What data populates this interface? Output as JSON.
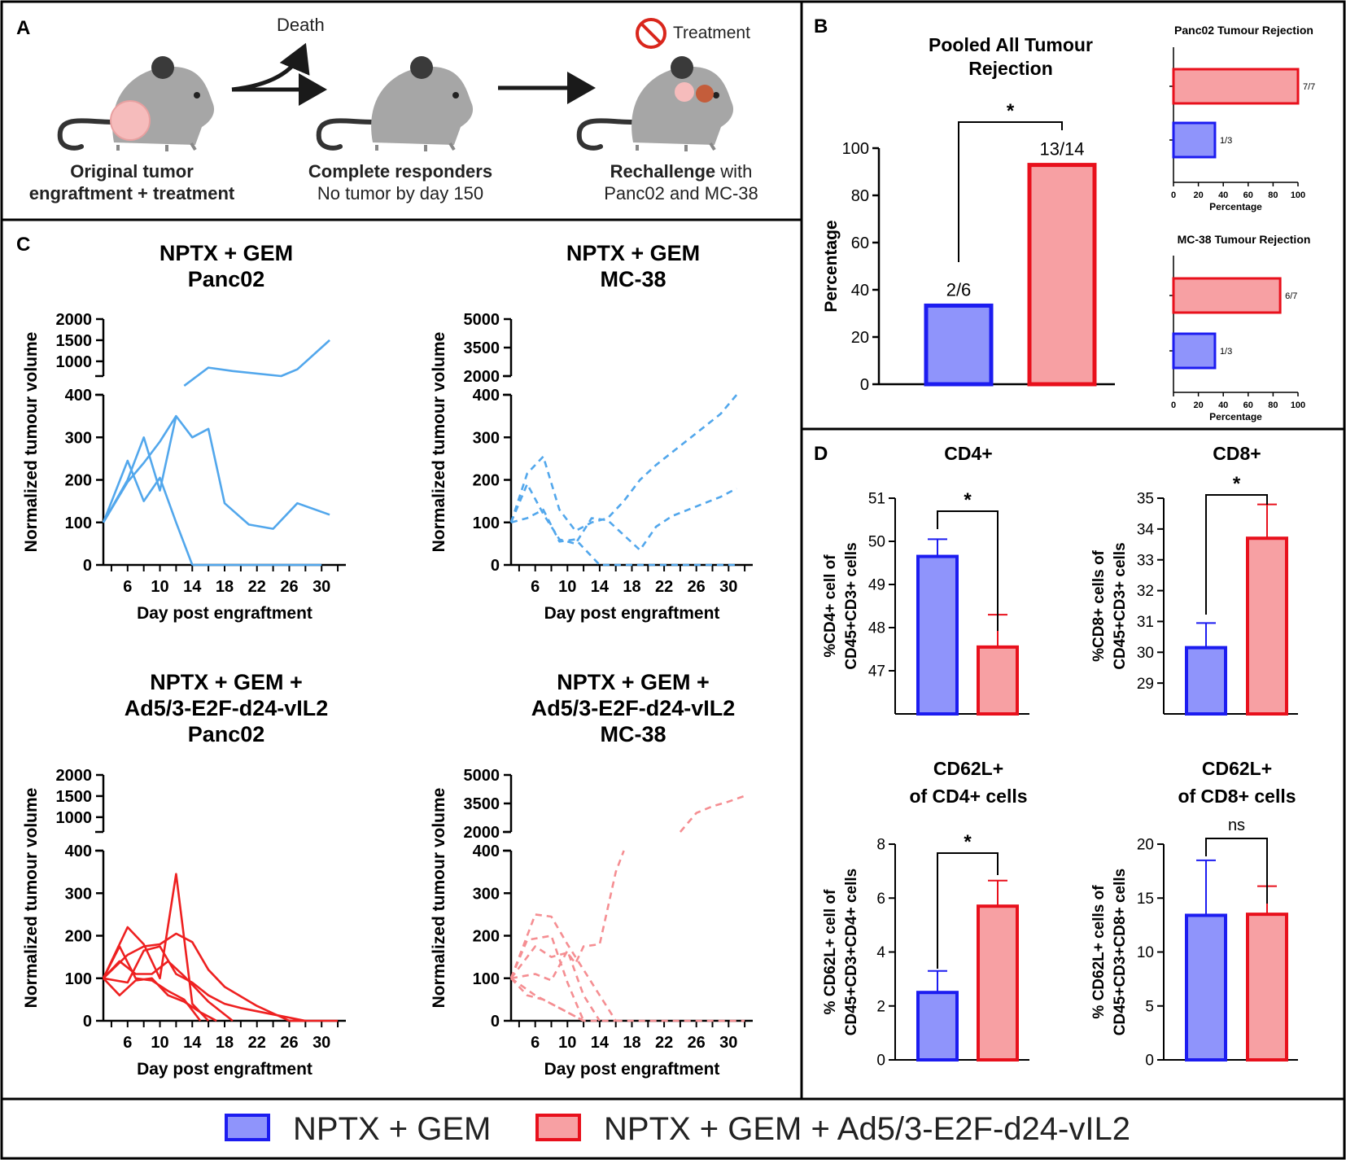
{
  "colors": {
    "blue_fill": "#8f94fb",
    "blue_edge": "#1c1cf0",
    "red_fill": "#f7a0a3",
    "red_edge": "#e8101c",
    "line_blue": "#52a7ec",
    "line_red": "#ee2020",
    "line_pink": "#f58e92",
    "mouse": "#a6a6a6",
    "mouse_dark": "#3c3c3c",
    "tumor_light": "#f6bcbc",
    "tumor_dark": "#c45d3b",
    "forbid": "#d9261c"
  },
  "panel_a": {
    "label": "A",
    "death": "Death",
    "treatment": "Treatment",
    "step1_line1": "Original tumor",
    "step1_line2": "engraftment + treatment",
    "step2_line1": "Complete responders",
    "step2_line2": "No tumor by day 150",
    "step3_bold": "Rechallenge",
    "step3_rest": " with",
    "step3_line2": "Panc02 and MC-38"
  },
  "panel_b_label": "B",
  "panel_c_label": "C",
  "panel_d_label": "D",
  "legend": {
    "items": [
      {
        "label": "NPTX + GEM",
        "group": "blue"
      },
      {
        "label": "NPTX + GEM + Ad5/3-E2F-d24-vIL2",
        "group": "red"
      }
    ]
  },
  "chart_data": [
    {
      "id": "pooled",
      "type": "bar",
      "title": "Pooled All Tumour Rejection",
      "title_lines": [
        "Pooled All Tumour",
        "Rejection"
      ],
      "ylabel": "Percentage",
      "ylim": [
        0,
        100
      ],
      "yticks": [
        0,
        20,
        40,
        60,
        80,
        100
      ],
      "categories": [
        "NPTX + GEM",
        "NPTX + GEM + Ad5/3-E2F-d24-vIL2"
      ],
      "values": [
        33.3,
        92.9
      ],
      "data_labels": [
        "2/6",
        "13/14"
      ],
      "significance": "*"
    },
    {
      "id": "panc02_rej",
      "type": "bar",
      "orientation": "horizontal",
      "title": "Panc02 Tumour Rejection",
      "xlabel": "Percentage",
      "xlim": [
        0,
        100
      ],
      "xticks": [
        0,
        20,
        40,
        60,
        80,
        100
      ],
      "categories": [
        "NPTX + GEM + Ad5/3-E2F-d24-vIL2",
        "NPTX + GEM"
      ],
      "values": [
        100,
        33.3
      ],
      "data_labels": [
        "7/7",
        "1/3"
      ]
    },
    {
      "id": "mc38_rej",
      "type": "bar",
      "orientation": "horizontal",
      "title": "MC-38 Tumour Rejection",
      "xlabel": "Percentage",
      "xlim": [
        0,
        100
      ],
      "xticks": [
        0,
        20,
        40,
        60,
        80,
        100
      ],
      "categories": [
        "NPTX + GEM + Ad5/3-E2F-d24-vIL2",
        "NPTX + GEM"
      ],
      "values": [
        85.7,
        33.3
      ],
      "data_labels": [
        "6/7",
        "1/3"
      ]
    },
    {
      "id": "c1",
      "type": "line",
      "title_lines": [
        "NPTX + GEM",
        "Panc02"
      ],
      "xlabel": "Day post engraftment",
      "ylabel": "Normalized tumour volume",
      "xlim": [
        3,
        33
      ],
      "xticks": [
        6,
        10,
        14,
        18,
        22,
        26,
        30
      ],
      "ylim_lower": [
        0,
        400
      ],
      "yticks_lower": [
        0,
        100,
        200,
        300,
        400
      ],
      "ylim_upper": [
        650,
        2000
      ],
      "yticks_upper": [
        1000,
        1500,
        2000
      ],
      "style": "solid",
      "color": "line_blue",
      "series": [
        {
          "x": [
            3,
            6,
            8,
            10,
            12,
            14
          ],
          "y": [
            100,
            245,
            150,
            205,
            100,
            0
          ]
        },
        {
          "x": [
            3,
            6,
            8,
            10,
            12,
            14,
            16,
            18,
            21,
            24,
            27,
            31
          ],
          "y": [
            100,
            200,
            300,
            175,
            350,
            300,
            320,
            145,
            95,
            85,
            145,
            118
          ]
        },
        {
          "x": [
            3,
            6,
            8,
            10,
            12,
            13,
            16,
            19,
            25,
            27,
            31
          ],
          "y": [
            100,
            195,
            240,
            290,
            350,
            420,
            850,
            770,
            650,
            810,
            1500
          ]
        },
        {
          "x": [
            14,
            16,
            18,
            20,
            22,
            24,
            26,
            28,
            30
          ],
          "y": [
            0,
            0,
            0,
            0,
            0,
            0,
            0,
            0,
            0
          ]
        }
      ]
    },
    {
      "id": "c2",
      "type": "line",
      "title_lines": [
        "NPTX + GEM",
        "MC-38"
      ],
      "xlabel": "Day post engraftment",
      "ylabel": "Normalized tumour volume",
      "xlim": [
        3,
        33
      ],
      "xticks": [
        6,
        10,
        14,
        18,
        22,
        26,
        30
      ],
      "ylim_lower": [
        0,
        400
      ],
      "yticks_lower": [
        0,
        100,
        200,
        300,
        400
      ],
      "ylim_upper": [
        2000,
        5000
      ],
      "yticks_upper": [
        2000,
        3500,
        5000
      ],
      "style": "dashed",
      "color": "line_blue",
      "series": [
        {
          "x": [
            3,
            5,
            7,
            9,
            11,
            13,
            15,
            17,
            19,
            21,
            23,
            25,
            27,
            29,
            31
          ],
          "y": [
            100,
            215,
            255,
            130,
            80,
            100,
            110,
            150,
            200,
            235,
            265,
            295,
            325,
            355,
            400
          ]
        },
        {
          "x": [
            3,
            5,
            7,
            9,
            11,
            13,
            15,
            17,
            19,
            21,
            23,
            25,
            27,
            29,
            31
          ],
          "y": [
            100,
            190,
            120,
            60,
            50,
            110,
            105,
            70,
            35,
            90,
            115,
            130,
            145,
            160,
            180
          ]
        },
        {
          "x": [
            3,
            5,
            7,
            9,
            11,
            13,
            14,
            18,
            22,
            26,
            31
          ],
          "y": [
            100,
            110,
            130,
            55,
            60,
            20,
            0,
            0,
            0,
            0,
            0
          ]
        }
      ]
    },
    {
      "id": "c3",
      "type": "line",
      "title_lines": [
        "NPTX + GEM +",
        "Ad5/3-E2F-d24-vIL2",
        "Panc02"
      ],
      "xlabel": "Day post engraftment",
      "ylabel": "Normalized tumour volume",
      "xlim": [
        3,
        33
      ],
      "xticks": [
        6,
        10,
        14,
        18,
        22,
        26,
        30
      ],
      "ylim_lower": [
        0,
        400
      ],
      "yticks_lower": [
        0,
        100,
        200,
        300,
        400
      ],
      "ylim_upper": [
        650,
        2000
      ],
      "yticks_upper": [
        1000,
        1500,
        2000
      ],
      "style": "solid",
      "color": "line_red",
      "series": [
        {
          "x": [
            3,
            6,
            8,
            10,
            12,
            14,
            16
          ],
          "y": [
            100,
            220,
            180,
            100,
            345,
            40,
            0
          ]
        },
        {
          "x": [
            3,
            6,
            8,
            10,
            12,
            14,
            16,
            18,
            22,
            26,
            28
          ],
          "y": [
            100,
            155,
            175,
            180,
            205,
            185,
            120,
            80,
            35,
            0,
            0
          ]
        },
        {
          "x": [
            3,
            6,
            8,
            10,
            12,
            14,
            16,
            18,
            20,
            24,
            28
          ],
          "y": [
            100,
            90,
            165,
            175,
            110,
            90,
            60,
            40,
            30,
            15,
            0
          ]
        },
        {
          "x": [
            3,
            5,
            7,
            9,
            11,
            13,
            15,
            17
          ],
          "y": [
            100,
            60,
            95,
            100,
            60,
            45,
            20,
            0
          ]
        },
        {
          "x": [
            3,
            5,
            7,
            9,
            11,
            13,
            15
          ],
          "y": [
            100,
            175,
            100,
            95,
            70,
            50,
            0
          ]
        },
        {
          "x": [
            3,
            5,
            7,
            9,
            11,
            13,
            16,
            19
          ],
          "y": [
            100,
            140,
            110,
            110,
            140,
            105,
            45,
            0
          ]
        },
        {
          "x": [
            26,
            28,
            30,
            32
          ],
          "y": [
            0,
            0,
            0,
            0
          ]
        }
      ]
    },
    {
      "id": "c4",
      "type": "line",
      "title_lines": [
        "NPTX + GEM +",
        "Ad5/3-E2F-d24-vIL2",
        "MC-38"
      ],
      "xlabel": "Day post engraftment",
      "ylabel": "Normalized tumour volume",
      "xlim": [
        3,
        33
      ],
      "xticks": [
        6,
        10,
        14,
        18,
        22,
        26,
        30
      ],
      "ylim_lower": [
        0,
        400
      ],
      "yticks_lower": [
        0,
        100,
        200,
        300,
        400
      ],
      "ylim_upper": [
        2000,
        5000
      ],
      "yticks_upper": [
        2000,
        3500,
        5000
      ],
      "style": "dashed",
      "color": "line_pink",
      "series": [
        {
          "x": [
            3,
            6,
            8,
            10,
            12,
            14,
            16
          ],
          "y": [
            100,
            250,
            245,
            180,
            120,
            60,
            0
          ]
        },
        {
          "x": [
            3,
            6,
            8,
            10,
            11,
            12,
            14,
            16,
            17
          ],
          "y": [
            100,
            175,
            150,
            160,
            135,
            175,
            180,
            350,
            400
          ]
        },
        {
          "x": [
            3,
            6,
            8,
            10,
            12,
            14,
            16
          ],
          "y": [
            100,
            60,
            40,
            20,
            0,
            0,
            0
          ]
        },
        {
          "x": [
            3,
            6,
            8,
            10,
            12,
            14
          ],
          "y": [
            100,
            110,
            95,
            165,
            60,
            0
          ]
        },
        {
          "x": [
            3,
            5,
            7,
            9,
            11,
            12
          ],
          "y": [
            100,
            60,
            50,
            30,
            10,
            0
          ]
        },
        {
          "x": [
            3,
            5,
            8,
            10,
            12
          ],
          "y": [
            100,
            190,
            200,
            90,
            0
          ]
        },
        {
          "x": [
            24,
            26,
            28,
            30,
            32
          ],
          "y": [
            2000,
            3000,
            3350,
            3600,
            3900
          ]
        },
        {
          "x": [
            16,
            20,
            24,
            28,
            32
          ],
          "y": [
            0,
            0,
            0,
            0,
            0
          ]
        }
      ]
    },
    {
      "id": "d_cd4",
      "type": "bar",
      "title_lines": [
        "CD4+"
      ],
      "ylabel_lines": [
        "%CD4+ cell of",
        "CD45+CD3+ cells"
      ],
      "ylim": [
        46.0,
        51.0
      ],
      "yticks": [
        47,
        48,
        49,
        50,
        51
      ],
      "categories": [
        "NPTX + GEM",
        "NPTX + GEM + Ad5/3-E2F-d24-vIL2"
      ],
      "values": [
        49.65,
        47.55
      ],
      "errors": [
        0.4,
        0.75
      ],
      "significance": "*"
    },
    {
      "id": "d_cd8",
      "type": "bar",
      "title_lines": [
        "CD8+"
      ],
      "ylabel_lines": [
        "%CD8+ cells of",
        "CD45+CD3+ cells"
      ],
      "ylim": [
        28.0,
        35.0
      ],
      "yticks": [
        29,
        30,
        31,
        32,
        33,
        34,
        35
      ],
      "categories": [
        "NPTX + GEM",
        "NPTX + GEM + Ad5/3-E2F-d24-vIL2"
      ],
      "values": [
        30.15,
        33.7
      ],
      "errors": [
        0.8,
        1.1
      ],
      "significance": "*"
    },
    {
      "id": "d_cd62l_cd4",
      "type": "bar",
      "title_lines": [
        "CD62L+",
        "of CD4+ cells"
      ],
      "ylabel_lines": [
        "% CD62L+ cell of",
        "CD45+CD3+CD4+ cells"
      ],
      "ylim": [
        0,
        8
      ],
      "yticks": [
        0,
        2,
        4,
        6,
        8
      ],
      "categories": [
        "NPTX + GEM",
        "NPTX + GEM + Ad5/3-E2F-d24-vIL2"
      ],
      "values": [
        2.5,
        5.7
      ],
      "errors": [
        0.8,
        0.95
      ],
      "significance": "*"
    },
    {
      "id": "d_cd62l_cd8",
      "type": "bar",
      "title_lines": [
        "CD62L+",
        "of CD8+ cells"
      ],
      "ylabel_lines": [
        "% CD62L+ cells of",
        "CD45+CD3+CD8+ cells"
      ],
      "ylim": [
        0,
        20
      ],
      "yticks": [
        0,
        5,
        10,
        15,
        20
      ],
      "categories": [
        "NPTX + GEM",
        "NPTX + GEM + Ad5/3-E2F-d24-vIL2"
      ],
      "values": [
        13.4,
        13.5
      ],
      "errors": [
        5.1,
        2.6
      ],
      "significance": "ns"
    }
  ]
}
